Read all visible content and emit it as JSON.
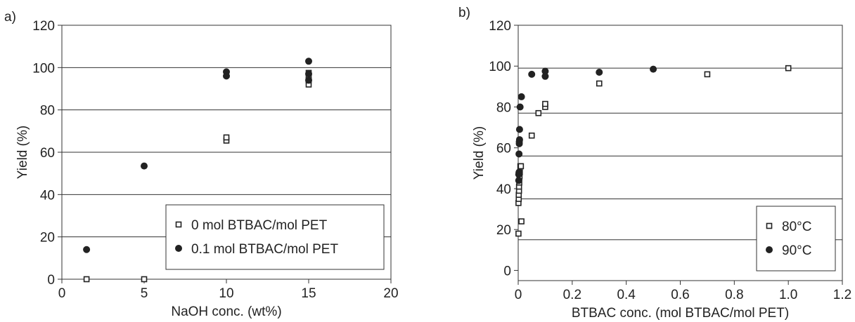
{
  "chart_data": [
    {
      "type": "scatter",
      "panel_label": "a)",
      "xlabel": "NaOH conc. (wt%)",
      "ylabel": "Yield (%)",
      "xlim": [
        0,
        20
      ],
      "ylim": [
        0,
        120
      ],
      "xticks": [
        0,
        5,
        10,
        15,
        20
      ],
      "yticks": [
        0,
        20,
        40,
        60,
        80,
        100,
        120
      ],
      "xtick_labels": [
        "0",
        "5",
        "10",
        "15",
        "20"
      ],
      "ytick_labels": [
        "0",
        "20",
        "40",
        "60",
        "80",
        "100",
        "120"
      ],
      "grid": "horizontal",
      "legend_position": "bottom-right",
      "series": [
        {
          "name": "0 mol BTBAC/mol PET",
          "marker": "open-square",
          "x": [
            1.5,
            5,
            10,
            10,
            15,
            15,
            15,
            15
          ],
          "y": [
            0,
            0,
            65.5,
            67,
            92,
            94,
            96,
            97.5
          ]
        },
        {
          "name": "0.1 mol BTBAC/mol PET",
          "marker": "filled-circle",
          "x": [
            1.5,
            5,
            10,
            10,
            15,
            15,
            15
          ],
          "y": [
            14,
            53.5,
            96,
            98,
            94,
            97,
            103
          ]
        }
      ]
    },
    {
      "type": "scatter",
      "panel_label": "b)",
      "xlabel": "BTBAC conc. (mol BTBAC/mol PET)",
      "ylabel": "Yield (%)",
      "xlim": [
        0,
        1.2
      ],
      "ylim": [
        -5,
        120
      ],
      "xticks": [
        0,
        0.2,
        0.4,
        0.6,
        0.8,
        1.0,
        1.2
      ],
      "yticks": [
        0,
        20,
        40,
        60,
        80,
        100,
        120
      ],
      "xtick_labels": [
        "0",
        "0.2",
        "0.4",
        "0.6",
        "0.8",
        "1.0",
        "1.2"
      ],
      "ytick_labels": [
        "0",
        "20",
        "40",
        "60",
        "80",
        "100",
        "120"
      ],
      "gridlines_y": [
        15,
        35,
        56,
        77,
        99
      ],
      "legend_position": "bottom-right",
      "series": [
        {
          "name": "80°C",
          "marker": "open-square",
          "x": [
            0.001,
            0.001,
            0.002,
            0.002,
            0.003,
            0.003,
            0.004,
            0.005,
            0.006,
            0.008,
            0.01,
            0.012,
            0.05,
            0.075,
            0.1,
            0.1,
            0.3,
            0.7,
            1.0
          ],
          "y": [
            18,
            33,
            35,
            37,
            39,
            41,
            43,
            46,
            48,
            51,
            51,
            24,
            66,
            77,
            80,
            81.5,
            91.5,
            96,
            99
          ]
        },
        {
          "name": "90°C",
          "marker": "filled-circle",
          "x": [
            0.002,
            0.002,
            0.003,
            0.003,
            0.004,
            0.004,
            0.005,
            0.005,
            0.007,
            0.012,
            0.05,
            0.1,
            0.1,
            0.3,
            0.5
          ],
          "y": [
            44,
            47,
            48,
            57,
            62,
            63,
            64,
            69,
            80,
            85,
            96,
            95,
            97.5,
            97,
            98.5
          ]
        }
      ]
    }
  ],
  "colors": {
    "marker": "#222222",
    "axis": "#333333",
    "grid": "#333333"
  }
}
